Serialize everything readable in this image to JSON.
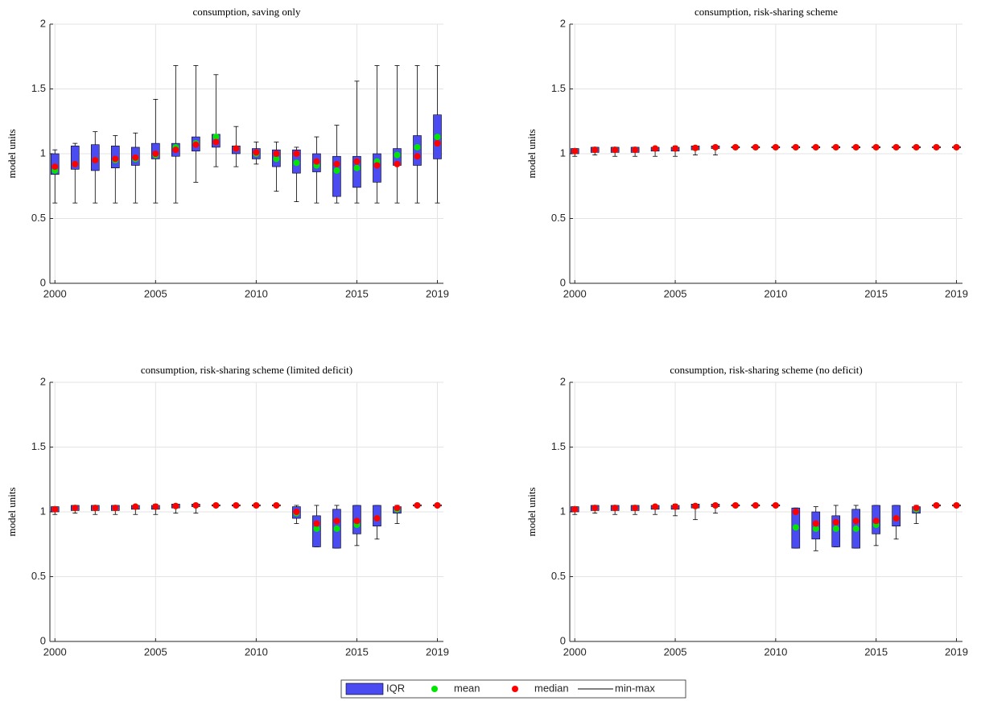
{
  "chart_data": [
    {
      "type": "box",
      "title": "consumption, saving only",
      "ylabel": "model units",
      "x": [
        2000,
        2001,
        2002,
        2003,
        2004,
        2005,
        2006,
        2007,
        2008,
        2009,
        2010,
        2011,
        2012,
        2013,
        2014,
        2015,
        2016,
        2017,
        2018,
        2019
      ],
      "min": [
        0.62,
        0.62,
        0.62,
        0.62,
        0.62,
        0.62,
        0.62,
        0.78,
        0.9,
        0.9,
        0.92,
        0.71,
        0.63,
        0.62,
        0.62,
        0.62,
        0.62,
        0.62,
        0.62,
        0.62
      ],
      "q1": [
        0.84,
        0.88,
        0.87,
        0.89,
        0.91,
        0.96,
        0.98,
        1.02,
        1.05,
        1.0,
        0.96,
        0.9,
        0.85,
        0.86,
        0.67,
        0.74,
        0.78,
        0.91,
        0.91,
        0.96
      ],
      "median": [
        0.9,
        0.92,
        0.95,
        0.96,
        0.97,
        1.0,
        1.03,
        1.07,
        1.09,
        1.04,
        1.01,
        1.0,
        1.0,
        0.94,
        0.92,
        0.94,
        0.91,
        0.92,
        0.98,
        1.08
      ],
      "q3": [
        1.0,
        1.06,
        1.07,
        1.06,
        1.05,
        1.08,
        1.08,
        1.13,
        1.15,
        1.06,
        1.04,
        1.03,
        1.03,
        1.0,
        0.98,
        0.98,
        1.0,
        1.04,
        1.14,
        1.3
      ],
      "max": [
        1.03,
        1.08,
        1.17,
        1.14,
        1.16,
        1.42,
        1.68,
        1.68,
        1.61,
        1.21,
        1.09,
        1.09,
        1.05,
        1.13,
        1.22,
        1.56,
        1.68,
        1.68,
        1.68,
        1.68
      ],
      "mean": [
        0.87,
        0.92,
        0.95,
        0.95,
        0.96,
        0.99,
        1.05,
        1.08,
        1.13,
        1.04,
        1.0,
        0.96,
        0.93,
        0.91,
        0.87,
        0.89,
        0.94,
        0.99,
        1.05,
        1.13
      ],
      "xlim": [
        1999.75,
        2019.3
      ],
      "xticks": [
        2000,
        2005,
        2010,
        2015,
        2019
      ],
      "ylim": [
        0,
        2
      ],
      "yticks": [
        0,
        0.5,
        1,
        1.5,
        2
      ],
      "grid": true
    },
    {
      "type": "box",
      "title": "consumption, risk-sharing scheme",
      "ylabel": "model units",
      "x": [
        2000,
        2001,
        2002,
        2003,
        2004,
        2005,
        2006,
        2007,
        2008,
        2009,
        2010,
        2011,
        2012,
        2013,
        2014,
        2015,
        2016,
        2017,
        2018,
        2019
      ],
      "min": [
        0.98,
        0.99,
        0.98,
        0.98,
        0.98,
        0.98,
        0.99,
        0.99,
        1.04,
        1.04,
        1.04,
        1.04,
        1.04,
        1.04,
        1.04,
        1.04,
        1.04,
        1.04,
        1.04,
        1.04
      ],
      "q1": [
        1.0,
        1.01,
        1.01,
        1.01,
        1.02,
        1.02,
        1.03,
        1.04,
        1.045,
        1.045,
        1.045,
        1.045,
        1.045,
        1.045,
        1.045,
        1.045,
        1.045,
        1.045,
        1.045,
        1.045
      ],
      "median": [
        1.02,
        1.03,
        1.03,
        1.03,
        1.04,
        1.04,
        1.045,
        1.05,
        1.05,
        1.05,
        1.05,
        1.05,
        1.05,
        1.05,
        1.05,
        1.05,
        1.05,
        1.05,
        1.05,
        1.05
      ],
      "q3": [
        1.04,
        1.05,
        1.05,
        1.05,
        1.05,
        1.05,
        1.06,
        1.06,
        1.055,
        1.055,
        1.055,
        1.055,
        1.055,
        1.055,
        1.055,
        1.055,
        1.055,
        1.055,
        1.055,
        1.055
      ],
      "max": [
        1.04,
        1.05,
        1.05,
        1.05,
        1.05,
        1.06,
        1.06,
        1.06,
        1.06,
        1.06,
        1.06,
        1.06,
        1.06,
        1.06,
        1.06,
        1.06,
        1.06,
        1.06,
        1.06,
        1.06
      ],
      "mean": [
        1.02,
        1.03,
        1.03,
        1.03,
        1.04,
        1.04,
        1.045,
        1.05,
        1.05,
        1.05,
        1.05,
        1.05,
        1.05,
        1.05,
        1.05,
        1.05,
        1.05,
        1.05,
        1.05,
        1.05
      ],
      "xlim": [
        1999.75,
        2019.3
      ],
      "xticks": [
        2000,
        2005,
        2010,
        2015,
        2019
      ],
      "ylim": [
        0,
        2
      ],
      "yticks": [
        0,
        0.5,
        1,
        1.5,
        2
      ],
      "grid": true
    },
    {
      "type": "box",
      "title": "consumption, risk-sharing scheme (limited deficit)",
      "ylabel": "model units",
      "x": [
        2000,
        2001,
        2002,
        2003,
        2004,
        2005,
        2006,
        2007,
        2008,
        2009,
        2010,
        2011,
        2012,
        2013,
        2014,
        2015,
        2016,
        2017,
        2018,
        2019
      ],
      "min": [
        0.98,
        0.99,
        0.98,
        0.98,
        0.98,
        0.98,
        0.99,
        0.99,
        1.04,
        1.04,
        1.04,
        1.04,
        0.91,
        0.73,
        0.72,
        0.74,
        0.79,
        0.91,
        1.04,
        1.04
      ],
      "q1": [
        1.0,
        1.01,
        1.01,
        1.01,
        1.02,
        1.02,
        1.03,
        1.04,
        1.045,
        1.045,
        1.045,
        1.045,
        0.95,
        0.73,
        0.72,
        0.83,
        0.89,
        0.99,
        1.045,
        1.045
      ],
      "median": [
        1.02,
        1.03,
        1.03,
        1.03,
        1.04,
        1.04,
        1.045,
        1.05,
        1.05,
        1.05,
        1.05,
        1.05,
        1.0,
        0.91,
        0.93,
        0.93,
        0.95,
        1.03,
        1.05,
        1.05
      ],
      "q3": [
        1.04,
        1.05,
        1.05,
        1.05,
        1.05,
        1.05,
        1.06,
        1.06,
        1.055,
        1.055,
        1.055,
        1.055,
        1.04,
        0.97,
        1.02,
        1.05,
        1.05,
        1.04,
        1.055,
        1.055
      ],
      "max": [
        1.04,
        1.05,
        1.05,
        1.05,
        1.05,
        1.06,
        1.06,
        1.06,
        1.06,
        1.06,
        1.06,
        1.06,
        1.05,
        1.05,
        1.05,
        1.05,
        1.05,
        1.05,
        1.06,
        1.06
      ],
      "mean": [
        1.02,
        1.03,
        1.03,
        1.03,
        1.04,
        1.04,
        1.045,
        1.05,
        1.05,
        1.05,
        1.05,
        1.05,
        0.99,
        0.87,
        0.87,
        0.9,
        0.95,
        1.02,
        1.05,
        1.05
      ],
      "xlim": [
        1999.75,
        2019.3
      ],
      "xticks": [
        2000,
        2005,
        2010,
        2015,
        2019
      ],
      "ylim": [
        0,
        2
      ],
      "yticks": [
        0,
        0.5,
        1,
        1.5,
        2
      ],
      "grid": true
    },
    {
      "type": "box",
      "title": "consumption, risk-sharing scheme (no deficit)",
      "ylabel": "model units",
      "x": [
        2000,
        2001,
        2002,
        2003,
        2004,
        2005,
        2006,
        2007,
        2008,
        2009,
        2010,
        2011,
        2012,
        2013,
        2014,
        2015,
        2016,
        2017,
        2018,
        2019
      ],
      "min": [
        0.98,
        0.99,
        0.98,
        0.98,
        0.98,
        0.97,
        0.94,
        0.99,
        1.04,
        1.04,
        1.04,
        0.72,
        0.7,
        0.73,
        0.72,
        0.74,
        0.79,
        0.91,
        1.04,
        1.04
      ],
      "q1": [
        1.0,
        1.01,
        1.01,
        1.01,
        1.02,
        1.02,
        1.03,
        1.04,
        1.045,
        1.045,
        1.045,
        0.72,
        0.79,
        0.73,
        0.72,
        0.83,
        0.89,
        0.99,
        1.045,
        1.045
      ],
      "median": [
        1.02,
        1.03,
        1.03,
        1.03,
        1.04,
        1.04,
        1.045,
        1.05,
        1.05,
        1.05,
        1.05,
        1.0,
        0.91,
        0.92,
        0.93,
        0.93,
        0.95,
        1.03,
        1.05,
        1.05
      ],
      "q3": [
        1.04,
        1.05,
        1.05,
        1.05,
        1.05,
        1.05,
        1.06,
        1.06,
        1.055,
        1.055,
        1.055,
        1.03,
        1.0,
        0.97,
        1.02,
        1.05,
        1.05,
        1.04,
        1.055,
        1.055
      ],
      "max": [
        1.04,
        1.05,
        1.05,
        1.05,
        1.05,
        1.06,
        1.06,
        1.06,
        1.06,
        1.06,
        1.06,
        1.03,
        1.04,
        1.05,
        1.05,
        1.05,
        1.05,
        1.05,
        1.06,
        1.06
      ],
      "mean": [
        1.02,
        1.03,
        1.03,
        1.03,
        1.04,
        1.04,
        1.045,
        1.05,
        1.05,
        1.05,
        1.05,
        0.88,
        0.87,
        0.87,
        0.87,
        0.9,
        0.95,
        1.02,
        1.05,
        1.05
      ],
      "xlim": [
        1999.75,
        2019.3
      ],
      "xticks": [
        2000,
        2005,
        2010,
        2015,
        2019
      ],
      "ylim": [
        0,
        2
      ],
      "yticks": [
        0,
        0.5,
        1,
        1.5,
        2
      ],
      "grid": true
    }
  ],
  "legend": [
    {
      "name": "IQR",
      "color": "#4b4bf2"
    },
    {
      "name": "mean",
      "color": "#00e600"
    },
    {
      "name": "median",
      "color": "#ff0000"
    },
    {
      "name": "min-max",
      "color": "#000000"
    }
  ]
}
